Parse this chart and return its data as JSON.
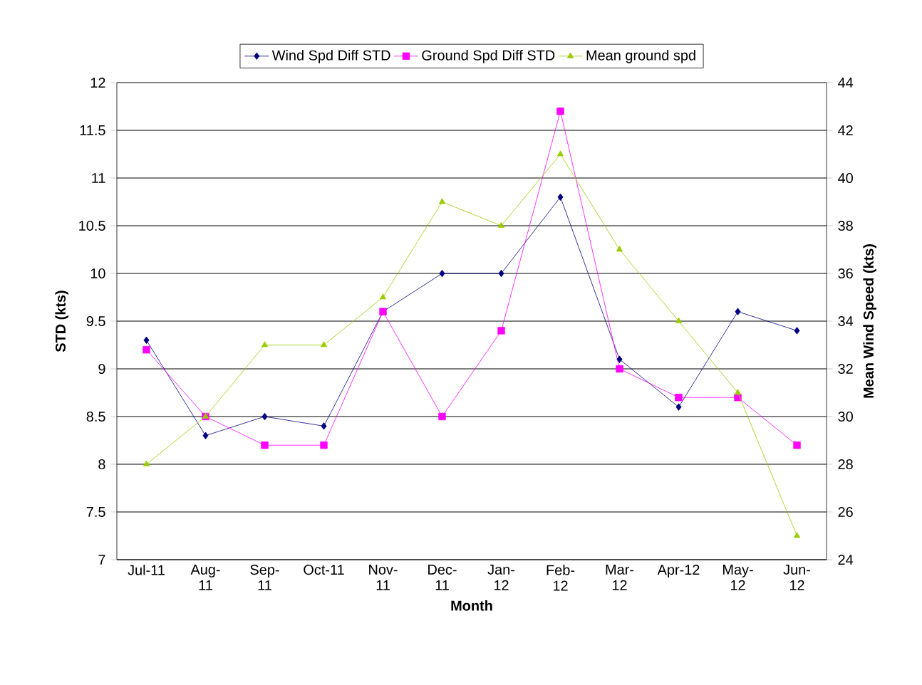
{
  "chart_data": {
    "type": "line",
    "xlabel": "Month",
    "ylabel": "STD (kts)",
    "y2label": "Mean Wind Speed (kts)",
    "categories": [
      "Jul-11",
      "Aug-11",
      "Sep-11",
      "Oct-11",
      "Nov-11",
      "Dec-11",
      "Jan-12",
      "Feb-12",
      "Mar-12",
      "Apr-12",
      "May-12",
      "Jun-12"
    ],
    "series": [
      {
        "name": "Wind Spd Diff STD",
        "color": "#000080",
        "marker": "diamond",
        "values": [
          9.3,
          8.3,
          8.5,
          8.4,
          9.6,
          10,
          10,
          10.8,
          9.1,
          8.6,
          9.6,
          9.4
        ]
      },
      {
        "name": "Ground Spd Diff STD",
        "color": "#ff00ff",
        "marker": "square",
        "values": [
          9.2,
          8.5,
          8.2,
          8.2,
          9.6,
          8.5,
          9.4,
          11.7,
          9.0,
          8.7,
          8.7,
          8.2
        ]
      },
      {
        "name": "Mean ground spd",
        "color": "#99cc00",
        "marker": "triangle",
        "axis": "y2",
        "values": [
          28,
          30,
          33,
          33,
          35,
          39,
          38,
          41,
          37,
          34,
          31,
          25
        ]
      }
    ],
    "ylim": [
      7,
      12
    ],
    "yticks": [
      7,
      7.5,
      8,
      8.5,
      9,
      9.5,
      10,
      10.5,
      11,
      11.5,
      12
    ],
    "y2lim": [
      24,
      44
    ],
    "y2ticks": [
      24,
      26,
      28,
      30,
      32,
      34,
      36,
      38,
      40,
      42,
      44
    ],
    "grid": "y",
    "legend": "top",
    "line_style": "solid"
  }
}
